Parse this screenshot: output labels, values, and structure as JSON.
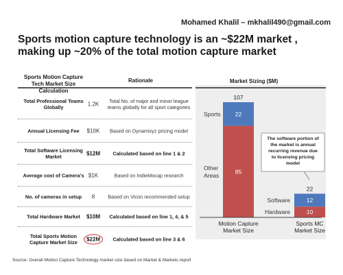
{
  "header": {
    "author": "Mohamed Khalil – mkhalil490@gmail.com",
    "headline": "Sports motion capture technology is an ~$22M  market , making up ~20% of the total motion capture market"
  },
  "table": {
    "col1_header": "Sports Motion Capture Tech Market Size Calculation",
    "col3_header": "Rationale",
    "rows": [
      {
        "label": "Total Professional Teams Globally",
        "value": "1.2K",
        "rationale": "Total No. of major and minor league teams globally for all sport categories"
      },
      {
        "label": "Annual Licensing Fee",
        "value": "$10K",
        "rationale": "Based on Dynamixyz pricing model"
      },
      {
        "label": "Total Software Licensing Market",
        "value": "$12M",
        "rationale": "Calculated based on line 1 & 2"
      },
      {
        "label": "Average cost of Camera's",
        "value": "$1K",
        "rationale": "Based on IndieMocap research"
      },
      {
        "label": "No. of cameras in setup",
        "value": "8",
        "rationale": "Based on Vicon recommended setup"
      },
      {
        "label": "Total Hardware Market",
        "value": "$10M",
        "rationale": "Calculated based on line 1, 4, & 5"
      },
      {
        "label": "Total Sports Motion Capture Market Size",
        "value": "$22M",
        "rationale": "Calculated based on line 3 & 6"
      }
    ]
  },
  "source": "Source: Overall Motion Capture Technology market size based on Market & Markets report",
  "colors": {
    "blue": "#4f79bd",
    "red": "#c0504d",
    "highlight_circle": "#c0282d"
  },
  "chart_data": {
    "type": "bar",
    "stacked": true,
    "title": "Market Sizing ($M)",
    "categories": [
      "Motion Capture Market Size",
      "Sports MC Market Size"
    ],
    "series": [
      {
        "name": "Other Areas",
        "color": "#c0504d",
        "values": [
          85,
          null
        ]
      },
      {
        "name": "Sports",
        "color": "#4f79bd",
        "values": [
          22,
          null
        ]
      },
      {
        "name": "Hardware",
        "color": "#c0504d",
        "values": [
          null,
          10
        ]
      },
      {
        "name": "Software",
        "color": "#4f79bd",
        "values": [
          null,
          12
        ]
      }
    ],
    "totals": [
      107,
      22
    ],
    "annotation": "The software portion of the market is annual recurring revenue due to licensing  pricing model"
  }
}
